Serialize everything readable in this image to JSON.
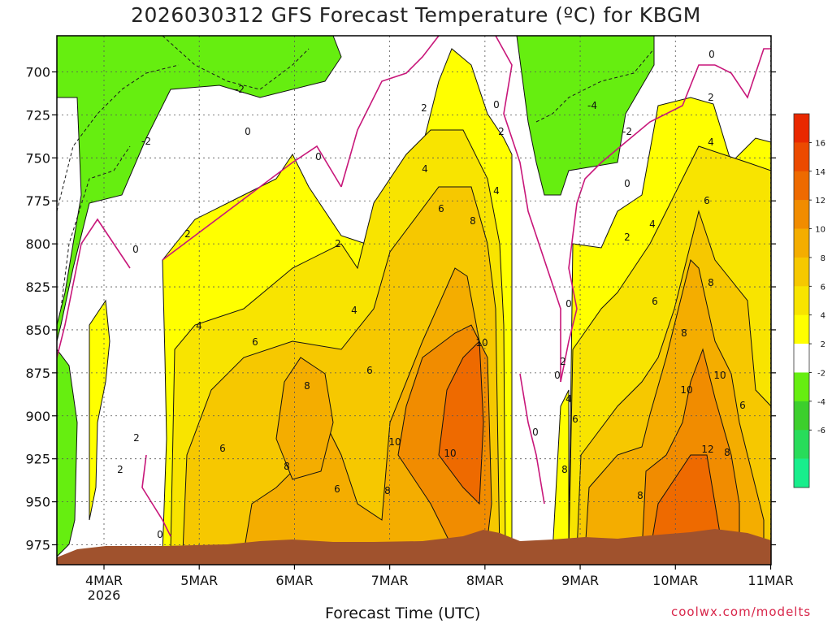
{
  "chart_data": {
    "type": "heatmap",
    "title": "2026030312 GFS Forecast Temperature (ºC) for KBGM",
    "xlabel": "Forecast Time (UTC)",
    "credit": "coolwx.com/modelts",
    "y_axis": {
      "ticks": [
        700,
        725,
        750,
        775,
        800,
        825,
        850,
        875,
        900,
        925,
        950,
        975
      ],
      "range": [
        675,
        985
      ],
      "reversed": true
    },
    "x_axis": {
      "ticks": [
        "4MAR",
        "5MAR",
        "6MAR",
        "7MAR",
        "8MAR",
        "9MAR",
        "10MAR",
        "11MAR"
      ],
      "sub_label": "2026",
      "range_days": [
        3.5,
        11.0
      ]
    },
    "colorbar": {
      "labels": [
        16,
        14,
        12,
        10,
        8,
        6,
        4,
        2,
        -2,
        -4,
        -6
      ],
      "levels": [
        -8,
        -6,
        -4,
        -2,
        2,
        4,
        6,
        8,
        10,
        12,
        14,
        16,
        18
      ],
      "colors": [
        "#18ee8c",
        "#28dc5a",
        "#3ccf2c",
        "#66ee10",
        "#ffffff",
        "#ffff00",
        "#f8e400",
        "#f6c800",
        "#f4ad00",
        "#f18c00",
        "#ee6a00",
        "#ec4a00",
        "#e92800"
      ]
    },
    "contour_labels": [
      "0",
      "-2",
      "-4",
      "2",
      "4",
      "6",
      "8",
      "10",
      "12"
    ],
    "grid": true,
    "terrain_color": "#a0522d",
    "dashed_contour_color": "#1a1a1a",
    "zero_contour_color": "#c8177a"
  }
}
